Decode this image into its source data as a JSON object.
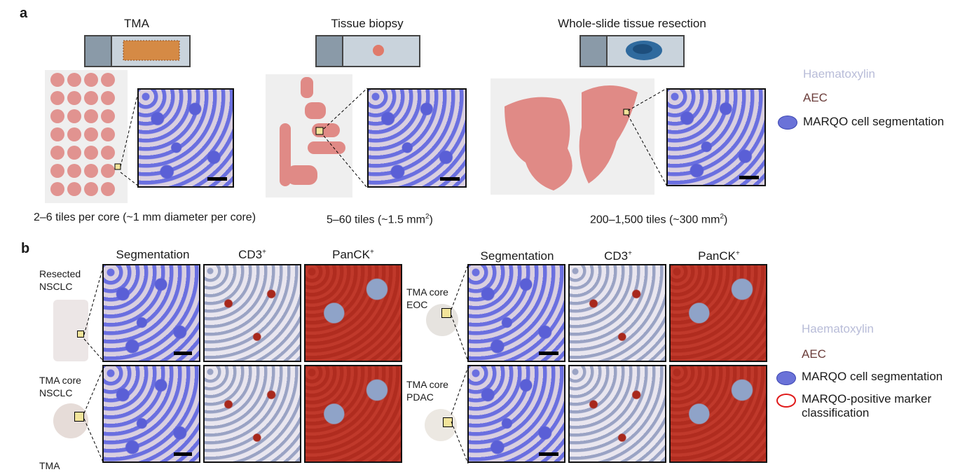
{
  "panel_a": {
    "letter": "a",
    "tma": {
      "title": "TMA",
      "caption": "2–6 tiles per core (~1 mm diameter per core)"
    },
    "biopsy": {
      "title": "Tissue biopsy",
      "caption_pre": "5–60 tiles (~1.5 mm",
      "caption_sup": "2",
      "caption_post": ")"
    },
    "resection": {
      "title": "Whole-slide tissue resection",
      "caption_pre": "200–1,500 tiles (~300 mm",
      "caption_sup": "2",
      "caption_post": ")"
    },
    "legend": {
      "haematoxylin": "Haematoxylin",
      "aec": "AEC",
      "segmentation": "MARQO cell segmentation"
    }
  },
  "panel_b": {
    "letter": "b",
    "col_segmentation": "Segmentation",
    "col_cd3": "CD3",
    "col_panck": "PanCK",
    "superscript": "+",
    "left_rows": [
      {
        "label_line1": "Resected",
        "label_line2": "NSCLC"
      },
      {
        "label_line1": "TMA core",
        "label_line2": "NSCLC"
      }
    ],
    "right_rows": [
      {
        "label_line1": "TMA core",
        "label_line2": "EOC"
      },
      {
        "label_line1": "TMA core",
        "label_line2": "PDAC"
      }
    ],
    "cutoff_label": "TMA",
    "legend": {
      "haematoxylin": "Haematoxylin",
      "aec": "AEC",
      "segmentation": "MARQO cell segmentation",
      "positive_line1": "MARQO-positive marker",
      "positive_line2": "classification"
    }
  },
  "colors": {
    "haematoxylin": "#b8bcd8",
    "aec": "#6b3d3a",
    "segmentation_fill": "#6a72d8",
    "positive_outline": "#e01b1b",
    "tissue_pink": "#e08a86"
  }
}
